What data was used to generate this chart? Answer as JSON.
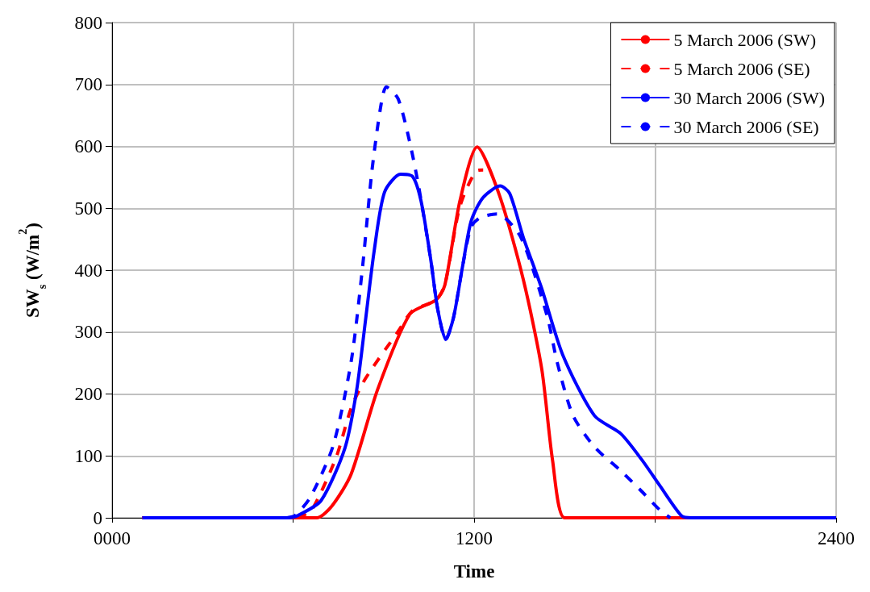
{
  "chart_data": {
    "type": "line",
    "xlabel": "Time",
    "ylabel": "SW$_{s}$ (W/m$^{2}$)",
    "xlim": [
      0,
      2400
    ],
    "xticks": [
      {
        "value": 0,
        "label": "0000"
      },
      {
        "value": 600,
        "label": null
      },
      1200,
      {
        "value": 1800,
        "label": null
      },
      2400
    ],
    "ylim": [
      0,
      800
    ],
    "yticks": [
      0,
      100,
      200,
      300,
      400,
      500,
      600,
      700,
      800
    ],
    "grid": true,
    "legend": "top right",
    "marker": "none",
    "series": [
      {
        "name": "5 March 2006 (SW)",
        "color": "#ff0000",
        "line_style": "solid",
        "x": [
          100,
          400,
          600,
          680,
          730,
          792,
          880,
          987,
          1074,
          1103,
          1153,
          1210,
          1284,
          1363,
          1424,
          1460,
          1500,
          1600,
          2000,
          2400
        ],
        "values": [
          0,
          0,
          0,
          0,
          20,
          70,
          207,
          329,
          352,
          376,
          512,
          599,
          521,
          385,
          241,
          93,
          0,
          0,
          0,
          0
        ]
      },
      {
        "name": "5 March 2006 (SE)",
        "color": "#ff0000",
        "line_style": "dashed",
        "x": [
          100,
          400,
          600,
          630,
          664,
          743,
          793,
          840,
          948,
          995,
          1074,
          1103,
          1153,
          1210,
          1230
        ],
        "values": [
          0,
          0,
          0,
          3,
          14,
          98,
          178,
          225,
          301,
          334,
          352,
          376,
          503,
          561,
          562
        ]
      },
      {
        "name": "30 March 2006 (SW)",
        "color": "#0000ff",
        "line_style": "solid",
        "x": [
          100,
          400,
          580,
          617,
          693,
          772,
          811,
          840,
          869,
          903,
          956,
          995,
          1024,
          1056,
          1079,
          1106,
          1132,
          1161,
          1190,
          1229,
          1287,
          1318,
          1363,
          1423,
          1494,
          1599,
          1686,
          1757,
          1817,
          1888,
          1920,
          2400
        ],
        "values": [
          0,
          0,
          0,
          4,
          28,
          113,
          207,
          319,
          432,
          526,
          555,
          552,
          512,
          418,
          338,
          288,
          324,
          404,
          479,
          517,
          536,
          524,
          453,
          372,
          263,
          165,
          136,
          93,
          51,
          3,
          0,
          0
        ]
      },
      {
        "name": "30 March 2006 (SE)",
        "color": "#0000ff",
        "line_style": "dashed",
        "x": [
          580,
          607,
          657,
          733,
          793,
          830,
          861,
          890,
          909,
          948,
          987,
          1016,
          1056,
          1079,
          1106,
          1132,
          1161,
          1190,
          1220,
          1276,
          1355,
          1442,
          1476,
          1528,
          1600,
          1686,
          1757,
          1815,
          1850
        ],
        "values": [
          0,
          4,
          33,
          117,
          254,
          404,
          559,
          663,
          696,
          677,
          606,
          536,
          418,
          338,
          288,
          324,
          404,
          470,
          485,
          491,
          453,
          326,
          250,
          165,
          114,
          76,
          42,
          13,
          0
        ]
      }
    ]
  }
}
